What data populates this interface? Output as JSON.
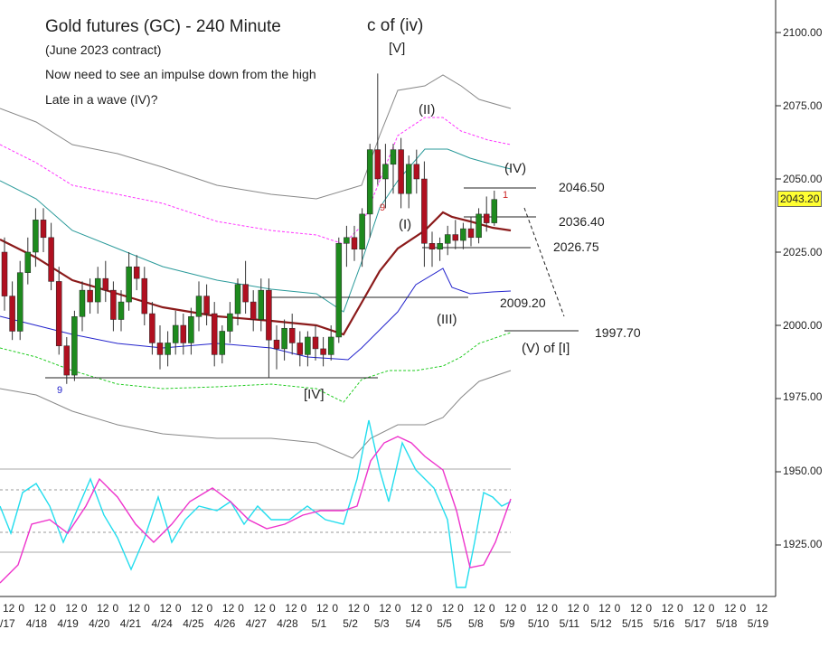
{
  "header": {
    "title": "Gold futures (GC) - 240 Minute",
    "subtitle": "(June 2023 contract)",
    "note1": "Now need to see an impulse down from the high",
    "note2": "Late in a wave (IV)?"
  },
  "last_price": "2043.20",
  "colors": {
    "bull": "#1e8a1e",
    "bear": "#b01020",
    "ma": "#8b1a1a",
    "lower_band": "#2222cc",
    "teal": "#2a9a9a",
    "outer": "#888888",
    "pink": "#ff33ff",
    "green_dash": "#22cc22",
    "osc_cyan": "#22ddee",
    "osc_magenta": "#ee33cc"
  },
  "chart_data": {
    "type": "candlestick",
    "ylim": [
      1910,
      2110
    ],
    "y_ticks": [
      "2100.00",
      "2075.00",
      "2050.00",
      "2025.00",
      "2000.00",
      "1975.00",
      "1950.00",
      "1925.00"
    ],
    "x_hour_labels": [
      "12",
      "0",
      "12",
      "0",
      "12",
      "0",
      "12",
      "0",
      "12",
      "0",
      "12",
      "0",
      "12",
      "0",
      "12",
      "0",
      "12",
      "0",
      "12",
      "0",
      "12",
      "0",
      "12",
      "0",
      "12",
      "0",
      "12",
      "0",
      "12",
      "0",
      "12",
      "0",
      "12",
      "0",
      "12",
      "0",
      "12",
      "0",
      "12",
      "0",
      "12",
      "0",
      "12",
      "0",
      "12",
      "0",
      "12",
      "0",
      "12"
    ],
    "x_date_labels": [
      "/17",
      "4/18",
      "4/19",
      "4/20",
      "4/21",
      "4/24",
      "4/25",
      "4/26",
      "4/27",
      "4/28",
      "5/1",
      "5/2",
      "5/3",
      "5/4",
      "5/5",
      "5/8",
      "5/9",
      "5/10",
      "5/11",
      "5/12",
      "5/15",
      "5/16",
      "5/17",
      "5/18",
      "5/19"
    ],
    "annotations": [
      {
        "text": "c of (iv)"
      },
      {
        "text": "[V]"
      },
      {
        "text": "(II)"
      },
      {
        "text": "(IV)"
      },
      {
        "text": "(I)"
      },
      {
        "text": "(III)"
      },
      {
        "text": "[IV]"
      },
      {
        "text": "(V) of [I]"
      },
      {
        "text": "9"
      },
      {
        "text": "9"
      },
      {
        "text": "1"
      }
    ],
    "levels": [
      {
        "label": "2046.50",
        "value": 2046.5
      },
      {
        "label": "2036.40",
        "value": 2036.4
      },
      {
        "label": "2026.75",
        "value": 2026.75
      },
      {
        "label": "2009.20",
        "value": 2009.2
      },
      {
        "label": "1997.70",
        "value": 1997.7
      }
    ],
    "support_line": 1981.5,
    "candles": [
      [
        2025,
        2030,
        2005,
        2010
      ],
      [
        2010,
        2015,
        1995,
        1998
      ],
      [
        1998,
        2022,
        1995,
        2018
      ],
      [
        2018,
        2030,
        2014,
        2025
      ],
      [
        2025,
        2040,
        2020,
        2036
      ],
      [
        2036,
        2040,
        2025,
        2030
      ],
      [
        2030,
        2035,
        2012,
        2015
      ],
      [
        2015,
        2020,
        1990,
        1993
      ],
      [
        1993,
        1996,
        1980,
        1983
      ],
      [
        1983,
        2005,
        1981,
        2003
      ],
      [
        2003,
        2015,
        1998,
        2012
      ],
      [
        2012,
        2016,
        2004,
        2008
      ],
      [
        2008,
        2020,
        2004,
        2016
      ],
      [
        2016,
        2022,
        2008,
        2012
      ],
      [
        2012,
        2015,
        1998,
        2002
      ],
      [
        2002,
        2012,
        1998,
        2008
      ],
      [
        2008,
        2025,
        2005,
        2020
      ],
      [
        2020,
        2024,
        2012,
        2016
      ],
      [
        2016,
        2020,
        2000,
        2004
      ],
      [
        2004,
        2008,
        1990,
        1994
      ],
      [
        1994,
        2000,
        1985,
        1990
      ],
      [
        1990,
        1998,
        1986,
        1994
      ],
      [
        1994,
        2005,
        1990,
        2000
      ],
      [
        2000,
        2004,
        1990,
        1994
      ],
      [
        1994,
        2006,
        1990,
        2003
      ],
      [
        2003,
        2015,
        1998,
        2010
      ],
      [
        2010,
        2014,
        2000,
        2004
      ],
      [
        2004,
        2008,
        1986,
        1990
      ],
      [
        1990,
        2000,
        1987,
        1998
      ],
      [
        1998,
        2008,
        1994,
        2004
      ],
      [
        2004,
        2016,
        2000,
        2014
      ],
      [
        2014,
        2022,
        2004,
        2008
      ],
      [
        2008,
        2012,
        1998,
        2002
      ],
      [
        2002,
        2016,
        1998,
        2012
      ],
      [
        2012,
        2016,
        1982,
        1995
      ],
      [
        1995,
        2000,
        1985,
        1992
      ],
      [
        1992,
        2002,
        1988,
        1999
      ],
      [
        1999,
        2004,
        1990,
        1994
      ],
      [
        1994,
        1998,
        1986,
        1990
      ],
      [
        1990,
        1998,
        1986,
        1996
      ],
      [
        1996,
        2000,
        1988,
        1992
      ],
      [
        1992,
        1996,
        1986,
        1990
      ],
      [
        1990,
        2000,
        1988,
        1996
      ],
      [
        1996,
        2030,
        1994,
        2028
      ],
      [
        2028,
        2034,
        2020,
        2030
      ],
      [
        2030,
        2034,
        2022,
        2026
      ],
      [
        2026,
        2040,
        2020,
        2038
      ],
      [
        2038,
        2062,
        2030,
        2060
      ],
      [
        2060,
        2086,
        2048,
        2050
      ],
      [
        2050,
        2062,
        2040,
        2055
      ],
      [
        2055,
        2062,
        2045,
        2060
      ],
      [
        2060,
        2064,
        2040,
        2045
      ],
      [
        2045,
        2058,
        2040,
        2055
      ],
      [
        2055,
        2060,
        2045,
        2050
      ],
      [
        2050,
        2056,
        2020,
        2028
      ],
      [
        2028,
        2032,
        2020,
        2026
      ],
      [
        2026,
        2030,
        2022,
        2028
      ],
      [
        2028,
        2034,
        2024,
        2031
      ],
      [
        2031,
        2036,
        2026,
        2029
      ],
      [
        2029,
        2035,
        2026,
        2033
      ],
      [
        2033,
        2037,
        2027,
        2030
      ],
      [
        2030,
        2040,
        2028,
        2038
      ],
      [
        2038,
        2044,
        2032,
        2035
      ],
      [
        2035,
        2046,
        2034,
        2043
      ]
    ]
  }
}
